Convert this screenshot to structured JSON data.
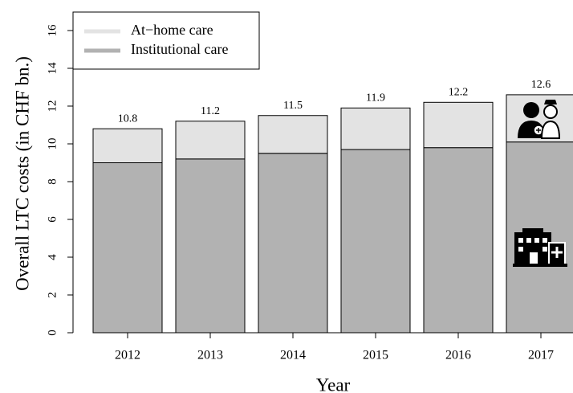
{
  "chart_data": {
    "type": "stacked-bar",
    "categories": [
      "2012",
      "2013",
      "2014",
      "2015",
      "2016",
      "2017"
    ],
    "series": [
      {
        "name": "Institutional care",
        "color": "#b2b2b2",
        "values": [
          9.0,
          9.2,
          9.5,
          9.7,
          9.8,
          10.1
        ]
      },
      {
        "name": "At−home care",
        "color": "#e3e3e3",
        "values": [
          1.8,
          2.0,
          2.0,
          2.2,
          2.4,
          2.5
        ]
      }
    ],
    "totals": [
      10.8,
      11.2,
      11.5,
      11.9,
      12.2,
      12.6
    ],
    "xlabel": "Year",
    "ylabel": "Overall LTC costs (in CHF bn.)",
    "ylim": [
      0,
      16
    ],
    "yticks": [
      0,
      2,
      4,
      6,
      8,
      10,
      12,
      14,
      16
    ],
    "legend": "top-left"
  }
}
